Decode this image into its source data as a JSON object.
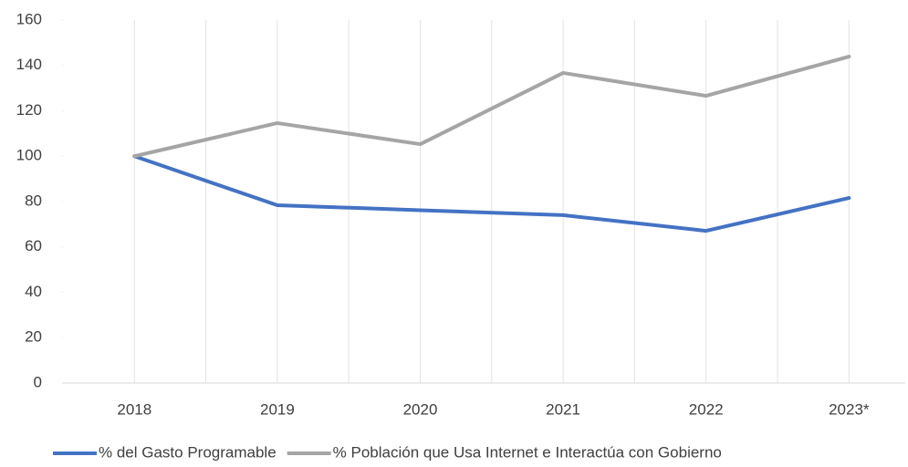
{
  "chart_data": {
    "type": "line",
    "categories": [
      "2018",
      "2019",
      "2020",
      "2021",
      "2022",
      "2023*"
    ],
    "series": [
      {
        "name": "% del Gasto Programable",
        "color": "#4472c4",
        "values": [
          100,
          78.4,
          76.2,
          74,
          67.1,
          81.6
        ]
      },
      {
        "name": "% Población que Usa Internet e Interactúa con Gobierno",
        "color": "#a5a5a5",
        "values": [
          100,
          114.6,
          105.3,
          136.7,
          126.6,
          143.9
        ]
      }
    ],
    "ylim": [
      0,
      160
    ],
    "yticks": [
      0,
      20,
      40,
      60,
      80,
      100,
      120,
      140,
      160
    ],
    "grid": true,
    "legend": "bottom"
  }
}
